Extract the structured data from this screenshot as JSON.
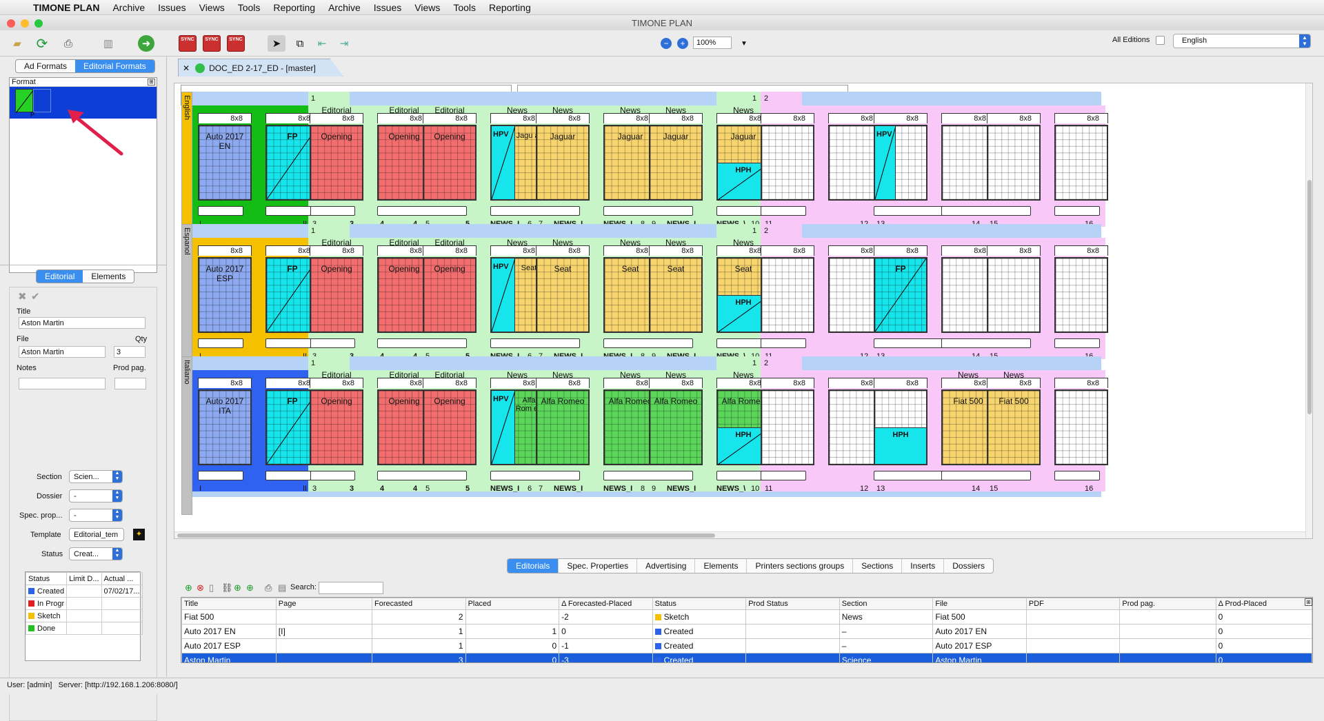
{
  "menubar": {
    "app": "TIMONE PLAN",
    "items": [
      "Archive",
      "Issues",
      "Views",
      "Tools",
      "Reporting",
      "Archive",
      "Issues",
      "Views",
      "Tools",
      "Reporting"
    ]
  },
  "window": {
    "title": "TIMONE PLAN"
  },
  "toolbar": {
    "zoom": "100%",
    "all_editions": "All Editions",
    "language": "English",
    "sync_label": "SYNC"
  },
  "left": {
    "tabs": [
      "Ad Formats",
      "Editorial Formats"
    ],
    "format_header": "Format",
    "format_thumb_label": "P",
    "detail_tabs": [
      "Editorial",
      "Elements"
    ],
    "title_label": "Title",
    "title_value": "Aston Martin",
    "file_label": "File",
    "qty_label": "Qty",
    "file_value": "Aston Martin",
    "qty_value": "3",
    "notes_label": "Notes",
    "prodpag_label": "Prod pag.",
    "section_label": "Section",
    "section_value": "Scien...",
    "dossier_label": "Dossier",
    "dossier_value": "-",
    "specprop_label": "Spec. prop...",
    "specprop_value": "-",
    "template_label": "Template",
    "template_value": "Editorial_tem",
    "status_label": "Status",
    "status_value": "Creat...",
    "status_table_headers": [
      "Status",
      "Limit D...",
      "Actual ..."
    ],
    "status_rows": [
      {
        "name": "Created",
        "color": "#2b62e6",
        "actual": "07/02/17..."
      },
      {
        "name": "In Progr",
        "color": "#e02020",
        "actual": ""
      },
      {
        "name": "Sketch",
        "color": "#f4c000",
        "actual": ""
      },
      {
        "name": "Done",
        "color": "#22c022",
        "actual": ""
      }
    ]
  },
  "doc_tab": "DOC_ED 2-17_ED - [master]",
  "plan": {
    "rows": [
      {
        "lang": "English",
        "cover_title": "Auto 2017 EN",
        "p4": "Jagu ar",
        "p5": "Jaguar",
        "p6": "Jaguar",
        "p7": "Jaguar",
        "p8": "Jaguar",
        "fp": "FP",
        "hpv": "HPV",
        "hph": "HPH"
      },
      {
        "lang": "Espanol",
        "cover_title": "Auto 2017 ESP",
        "p4": "Seat",
        "p5": "Seat",
        "p6": "Seat",
        "p7": "Seat",
        "p8": "Seat",
        "fp": "FP",
        "hpv": "HPV",
        "hph": "HPH"
      },
      {
        "lang": "Italiano",
        "cover_title": "Auto 2017 ITA",
        "p4": "Alfa Rom eo",
        "p5": "Alfa Romeo",
        "p6": "Alfa Romeo",
        "p7": "Alfa Romeo",
        "p8": "Alfa Romeo",
        "fp": "FP",
        "hpv": "HPV",
        "hph": "HPH"
      }
    ],
    "fmt": "8x8",
    "editorial": "Editorial",
    "news": "News",
    "opening": "Opening",
    "fiat": "Fiat 500",
    "nums": [
      "I",
      "II",
      "3",
      "3",
      "4",
      "4",
      "5",
      "5",
      "NEWS_I",
      "6",
      "7",
      "NEWS_I",
      "NEWS_I",
      "8",
      "9",
      "NEWS_I",
      "NEWS_\\",
      "10",
      "11",
      "12",
      "13",
      "14",
      "15",
      "16"
    ],
    "flag1": "1",
    "flag2": "2"
  },
  "bottom": {
    "tabs": [
      "Editorials",
      "Spec. Properties",
      "Advertising",
      "Elements",
      "Printers sections groups",
      "Sections",
      "Inserts",
      "Dossiers"
    ],
    "search_label": "Search:",
    "headers": [
      "Title",
      "Page",
      "Forecasted",
      "Placed",
      "Δ Forecasted-Placed",
      "Status",
      "Prod Status",
      "Section",
      "File",
      "PDF",
      "Prod pag.",
      "Δ Prod-Placed"
    ],
    "rows": [
      {
        "title": "Fiat 500",
        "page": "",
        "fc": "2",
        "pl": "",
        "d": "-2",
        "status": "Sketch",
        "scolor": "#f4c000",
        "prod": "",
        "section": "News",
        "file": "Fiat 500",
        "pdf": "",
        "pp": "",
        "dp": "0"
      },
      {
        "title": "Auto 2017 EN",
        "page": "[I]",
        "fc": "1",
        "pl": "1",
        "d": "0",
        "status": "Created",
        "scolor": "#2b62e6",
        "prod": "",
        "section": "–",
        "file": "Auto 2017 EN",
        "pdf": "",
        "pp": "",
        "dp": "0"
      },
      {
        "title": "Auto 2017 ESP",
        "page": "",
        "fc": "1",
        "pl": "0",
        "d": "-1",
        "status": "Created",
        "scolor": "#2b62e6",
        "prod": "",
        "section": "–",
        "file": "Auto 2017 ESP",
        "pdf": "",
        "pp": "",
        "dp": "0"
      },
      {
        "title": "Aston Martin",
        "page": "",
        "fc": "3",
        "pl": "0",
        "d": "-3",
        "status": "Created",
        "scolor": "#2b62e6",
        "prod": "",
        "section": "Science",
        "file": "Aston Martin",
        "pdf": "",
        "pp": "",
        "dp": "0"
      }
    ]
  },
  "statusbar": {
    "user": "User: [admin]",
    "server": "Server: [http://192.168.1.206:8080/]"
  }
}
